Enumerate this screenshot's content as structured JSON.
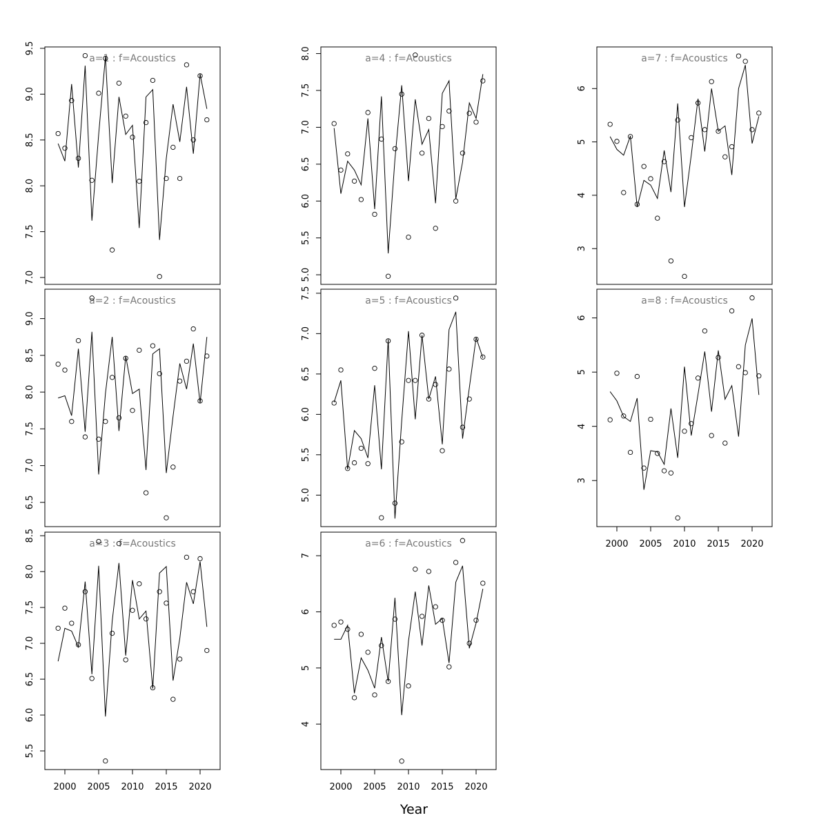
{
  "chart_data": [
    {
      "type": "scatter",
      "title": "a=1  :  f=Acoustics",
      "x": [
        1999,
        2000,
        2001,
        2002,
        2003,
        2004,
        2005,
        2006,
        2007,
        2008,
        2009,
        2010,
        2011,
        2012,
        2013,
        2014,
        2015,
        2016,
        2017,
        2018,
        2019,
        2020,
        2021
      ],
      "values": [
        8.57,
        8.41,
        8.93,
        8.3,
        9.42,
        8.06,
        9.01,
        9.39,
        7.3,
        9.12,
        8.76,
        8.53,
        8.05,
        8.69,
        9.15,
        7.01,
        8.08,
        8.42,
        8.08,
        9.32,
        8.5,
        9.2,
        8.72
      ],
      "line_values": [
        8.46,
        8.27,
        9.11,
        8.2,
        9.31,
        7.62,
        8.56,
        9.41,
        8.03,
        8.97,
        8.56,
        8.66,
        7.54,
        8.97,
        9.05,
        7.41,
        8.3,
        8.89,
        8.48,
        9.08,
        8.35,
        9.22,
        8.84
      ],
      "color": "#000000",
      "xlim": [
        1997.04,
        2022.96
      ],
      "ylim": [
        6.925,
        9.515
      ],
      "yticks": [
        {
          "value": 7,
          "label": "7.0"
        },
        7.5,
        {
          "value": 8,
          "label": "8.0"
        },
        8.5,
        {
          "value": 9,
          "label": "9.0"
        },
        9.5
      ]
    },
    {
      "type": "scatter",
      "title": "a=2  :  f=Acoustics",
      "x": [
        1999,
        2000,
        2001,
        2002,
        2003,
        2004,
        2005,
        2006,
        2007,
        2008,
        2009,
        2010,
        2011,
        2012,
        2013,
        2014,
        2015,
        2016,
        2017,
        2018,
        2019,
        2020,
        2021
      ],
      "values": [
        8.38,
        8.3,
        7.6,
        8.7,
        7.39,
        9.28,
        7.36,
        7.6,
        8.2,
        7.65,
        8.46,
        7.75,
        8.57,
        6.63,
        8.63,
        8.25,
        6.29,
        6.98,
        8.15,
        8.42,
        8.86,
        7.88,
        8.49
      ],
      "line_values": [
        7.92,
        7.95,
        7.68,
        8.59,
        7.46,
        8.82,
        6.88,
        7.98,
        8.75,
        7.47,
        8.49,
        7.98,
        8.04,
        6.94,
        8.52,
        8.59,
        6.9,
        7.67,
        8.39,
        8.04,
        8.66,
        7.85,
        8.75
      ],
      "color": "#000000",
      "xlim": [
        1997.04,
        2022.96
      ],
      "ylim": [
        6.17,
        9.4
      ],
      "yticks": [
        6.5,
        {
          "value": 7,
          "label": "7.0"
        },
        7.5,
        {
          "value": 8,
          "label": "8.0"
        },
        8.5,
        {
          "value": 9,
          "label": "9.0"
        }
      ]
    },
    {
      "type": "scatter",
      "title": "a=3  :  f=Acoustics",
      "x": [
        1999,
        2000,
        2001,
        2002,
        2003,
        2004,
        2005,
        2006,
        2007,
        2008,
        2009,
        2010,
        2011,
        2012,
        2013,
        2014,
        2015,
        2016,
        2017,
        2018,
        2019,
        2020,
        2021
      ],
      "values": [
        7.21,
        7.49,
        7.28,
        6.98,
        7.72,
        6.51,
        8.42,
        5.36,
        7.14,
        8.39,
        6.77,
        7.46,
        7.83,
        7.34,
        6.38,
        7.72,
        7.56,
        6.22,
        6.78,
        8.2,
        7.72,
        8.18,
        6.9
      ],
      "line_values": [
        6.75,
        7.21,
        7.17,
        6.95,
        7.86,
        6.57,
        8.08,
        5.98,
        7.31,
        8.12,
        6.83,
        7.88,
        7.34,
        7.45,
        6.37,
        7.98,
        8.07,
        6.48,
        7.07,
        7.85,
        7.55,
        8.14,
        7.23
      ],
      "color": "#000000",
      "xlim": [
        1997.04,
        2022.96
      ],
      "ylim": [
        5.24,
        8.55
      ],
      "yticks": [
        5.5,
        {
          "value": 6,
          "label": "6.0"
        },
        6.5,
        {
          "value": 7,
          "label": "7.0"
        },
        7.5,
        {
          "value": 8,
          "label": "8.0"
        },
        8.5
      ],
      "xticks": [
        2000,
        2005,
        2010,
        2015,
        2020
      ]
    },
    {
      "type": "scatter",
      "title": "a=4  :  f=Acoustics",
      "x": [
        1999,
        2000,
        2001,
        2002,
        2003,
        2004,
        2005,
        2006,
        2007,
        2008,
        2009,
        2010,
        2011,
        2012,
        2013,
        2014,
        2015,
        2016,
        2017,
        2018,
        2019,
        2020,
        2021
      ],
      "values": [
        7.05,
        6.42,
        6.64,
        6.27,
        6.02,
        7.2,
        5.82,
        6.84,
        4.98,
        6.71,
        7.45,
        5.51,
        7.98,
        6.65,
        7.12,
        5.63,
        7.01,
        7.22,
        6.0,
        6.65,
        7.19,
        7.07,
        7.63
      ],
      "line_values": [
        6.99,
        6.1,
        6.54,
        6.42,
        6.22,
        7.12,
        5.89,
        7.42,
        5.29,
        6.57,
        7.57,
        6.27,
        7.38,
        6.77,
        6.97,
        5.97,
        7.46,
        7.63,
        6.03,
        6.53,
        7.33,
        7.12,
        7.72
      ],
      "color": "#000000",
      "xlim": [
        1997.04,
        2022.96
      ],
      "ylim": [
        4.87,
        8.09
      ],
      "yticks": [
        {
          "value": 5,
          "label": "5.0"
        },
        5.5,
        {
          "value": 6,
          "label": "6.0"
        },
        6.5,
        {
          "value": 7,
          "label": "7.0"
        },
        7.5,
        {
          "value": 8,
          "label": "8.0"
        }
      ]
    },
    {
      "type": "scatter",
      "title": "a=5  :  f=Acoustics",
      "x": [
        1999,
        2000,
        2001,
        2002,
        2003,
        2004,
        2005,
        2006,
        2007,
        2008,
        2009,
        2010,
        2011,
        2012,
        2013,
        2014,
        2015,
        2016,
        2017,
        2018,
        2019,
        2020,
        2021
      ],
      "values": [
        6.14,
        6.55,
        5.33,
        5.4,
        5.58,
        5.39,
        6.57,
        4.72,
        6.91,
        4.9,
        5.66,
        6.42,
        6.42,
        6.98,
        6.19,
        6.37,
        5.55,
        6.56,
        7.44,
        5.84,
        6.19,
        6.93,
        6.71
      ],
      "line_values": [
        6.15,
        6.42,
        5.32,
        5.8,
        5.7,
        5.46,
        6.36,
        5.32,
        6.93,
        4.71,
        5.92,
        7.03,
        5.94,
        6.98,
        6.19,
        6.47,
        5.63,
        7.05,
        7.27,
        5.7,
        6.33,
        6.95,
        6.7
      ],
      "color": "#000000",
      "xlim": [
        1997.04,
        2022.96
      ],
      "ylim": [
        4.61,
        7.55
      ],
      "yticks": [
        {
          "value": 5,
          "label": "5.0"
        },
        5.5,
        {
          "value": 6,
          "label": "6.0"
        },
        6.5,
        {
          "value": 7,
          "label": "7.0"
        },
        7.5
      ]
    },
    {
      "type": "scatter",
      "title": "a=6  :  f=Acoustics",
      "x": [
        1999,
        2000,
        2001,
        2002,
        2003,
        2004,
        2005,
        2006,
        2007,
        2008,
        2009,
        2010,
        2011,
        2012,
        2013,
        2014,
        2015,
        2016,
        2017,
        2018,
        2019,
        2020,
        2021
      ],
      "values": [
        5.76,
        5.82,
        5.69,
        4.47,
        5.6,
        5.28,
        4.52,
        5.4,
        4.76,
        5.87,
        3.34,
        4.68,
        6.76,
        5.92,
        6.72,
        6.09,
        5.85,
        5.02,
        6.88,
        7.27,
        5.44,
        5.85,
        6.51
      ],
      "line_values": [
        5.51,
        5.51,
        5.76,
        4.55,
        5.18,
        4.96,
        4.64,
        5.55,
        4.76,
        6.25,
        4.16,
        5.48,
        6.36,
        5.4,
        6.47,
        5.78,
        5.88,
        5.09,
        6.53,
        6.82,
        5.35,
        5.8,
        6.41
      ],
      "color": "#000000",
      "xlim": [
        1997.04,
        2022.96
      ],
      "ylim": [
        3.19,
        7.42
      ],
      "yticks": [
        4,
        5,
        6,
        7
      ],
      "xticks": [
        2000,
        2005,
        2010,
        2015,
        2020
      ],
      "xlabel": "Year"
    },
    {
      "type": "scatter",
      "title": "a=7  :  f=Acoustics",
      "x": [
        1999,
        2000,
        2001,
        2002,
        2003,
        2004,
        2005,
        2006,
        2007,
        2008,
        2009,
        2010,
        2011,
        2012,
        2013,
        2014,
        2015,
        2016,
        2017,
        2018,
        2019,
        2020,
        2021
      ],
      "values": [
        5.33,
        5.01,
        4.05,
        5.1,
        3.83,
        4.54,
        4.31,
        3.57,
        4.63,
        2.77,
        5.41,
        2.48,
        5.08,
        5.73,
        5.23,
        6.13,
        5.2,
        4.72,
        4.91,
        6.61,
        6.51,
        5.23,
        5.54
      ],
      "line_values": [
        5.1,
        4.86,
        4.75,
        5.11,
        3.78,
        4.28,
        4.19,
        3.94,
        4.84,
        4.06,
        5.72,
        3.78,
        4.75,
        5.81,
        4.82,
        6.0,
        5.2,
        5.3,
        4.38,
        6.0,
        6.44,
        4.97,
        5.48
      ],
      "color": "#000000",
      "xlim": [
        1997.04,
        2022.96
      ],
      "ylim": [
        2.33,
        6.78
      ],
      "yticks": [
        3,
        4,
        5,
        6
      ]
    },
    {
      "type": "scatter",
      "title": "a=8  :  f=Acoustics",
      "x": [
        1999,
        2000,
        2001,
        2002,
        2003,
        2004,
        2005,
        2006,
        2007,
        2008,
        2009,
        2010,
        2011,
        2012,
        2013,
        2014,
        2015,
        2016,
        2017,
        2018,
        2019,
        2020,
        2021
      ],
      "values": [
        4.12,
        4.98,
        4.19,
        3.52,
        4.92,
        3.23,
        4.13,
        3.5,
        3.18,
        3.14,
        2.31,
        3.91,
        4.05,
        4.89,
        5.76,
        3.83,
        5.27,
        3.69,
        6.13,
        5.1,
        4.99,
        6.37,
        4.93
      ],
      "line_values": [
        4.64,
        4.47,
        4.18,
        4.09,
        4.52,
        2.83,
        3.55,
        3.53,
        3.3,
        4.33,
        3.42,
        5.1,
        3.83,
        4.59,
        5.38,
        4.27,
        5.4,
        4.5,
        4.75,
        3.81,
        5.5,
        5.99,
        4.58
      ],
      "color": "#000000",
      "xlim": [
        1997.04,
        2022.96
      ],
      "ylim": [
        2.15,
        6.53
      ],
      "yticks": [
        3,
        4,
        5,
        6
      ],
      "xticks": [
        2000,
        2005,
        2010,
        2015,
        2020
      ]
    }
  ]
}
